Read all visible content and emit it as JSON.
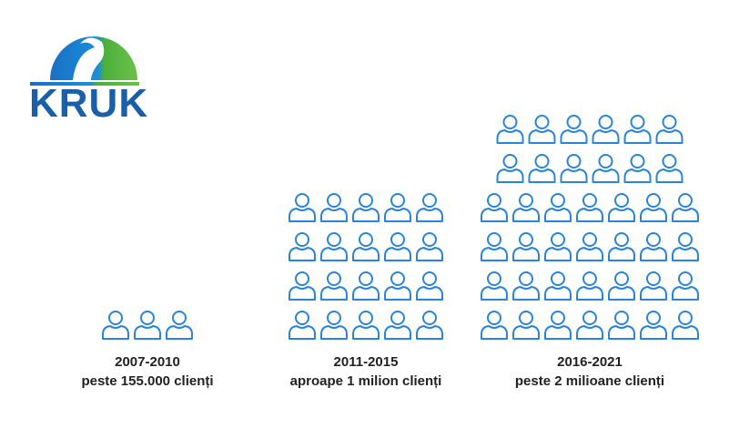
{
  "logo": {
    "text": "KRUK"
  },
  "groups": [
    {
      "period": "2007-2010",
      "label": "peste 155.000 clienți",
      "icon_rows": [
        3
      ]
    },
    {
      "period": "2011-2015",
      "label": "aproape 1 milion clienți",
      "icon_rows": [
        5,
        5,
        5,
        5
      ]
    },
    {
      "period": "2016-2021",
      "label": "peste 2 milioane clienți",
      "icon_rows": [
        6,
        6,
        7,
        7,
        7,
        7
      ]
    }
  ]
}
